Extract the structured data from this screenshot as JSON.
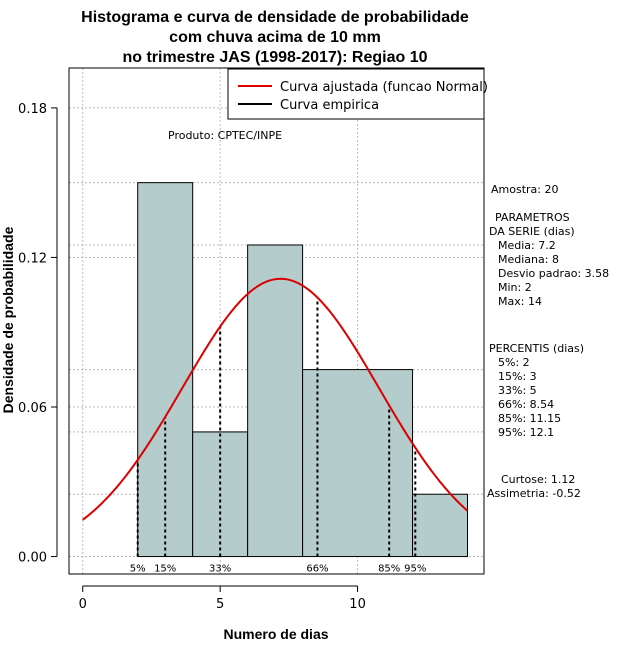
{
  "chart_data": {
    "type": "bar",
    "title_lines": [
      "Histograma e curva de densidade de probabilidade",
      "com chuva acima de 10 mm",
      "no trimestre JAS (1998-2017): Regiao 10"
    ],
    "xlabel": "Numero de dias",
    "ylabel": "Densidade de probabilidade",
    "xlim": [
      -0.5,
      14.6
    ],
    "ylim": [
      -0.007,
      0.196
    ],
    "x_ticks": [
      0,
      5,
      10
    ],
    "y_ticks": [
      0.0,
      0.06,
      0.12,
      0.18
    ],
    "y_tick_labels": [
      "0.00",
      "0.06",
      "0.12",
      "0.18"
    ],
    "grid": true,
    "bins": [
      {
        "x0": 2,
        "x1": 4,
        "density": 0.15
      },
      {
        "x0": 4,
        "x1": 6,
        "density": 0.05
      },
      {
        "x0": 6,
        "x1": 8,
        "density": 0.125
      },
      {
        "x0": 8,
        "x1": 12,
        "density": 0.075
      },
      {
        "x0": 12,
        "x1": 14,
        "density": 0.025
      }
    ],
    "fitted_curve": {
      "name": "Curva ajustada (funcao Normal)",
      "mean": 7.2,
      "sd": 3.58,
      "color": "#dd0000"
    },
    "empirical_curve": {
      "name": "Curva empirica",
      "color": "#000000"
    },
    "legend_position": "top-right",
    "percentile_markers": [
      {
        "label": "5%",
        "x": 2
      },
      {
        "label": "15%",
        "x": 3
      },
      {
        "label": "33%",
        "x": 5
      },
      {
        "label": "66%",
        "x": 8.54
      },
      {
        "label": "85%",
        "x": 11.15
      },
      {
        "label": "95%",
        "x": 12.1
      }
    ],
    "annotation_product": "Produto: CPTEC/INPE",
    "bar_color": "#b5cccc"
  },
  "stats": {
    "sample": "Amostra: 20",
    "params_title_1": "PARAMETROS",
    "params_title_2": "DA SERIE (dias)",
    "media": "Media: 7.2",
    "mediana": "Mediana: 8",
    "desvio": "Desvio padrao: 3.58",
    "min": "Min: 2",
    "max": "Max: 14",
    "pct_title": "PERCENTIS (dias)",
    "p5": "5%: 2",
    "p15": "15%: 3",
    "p33": "33%: 5",
    "p66": "66%: 8.54",
    "p85": "85%: 11.15",
    "p95": "95%: 12.1",
    "curtose": "Curtose: 1.12",
    "assimetria": "Assimetria: -0.52"
  }
}
